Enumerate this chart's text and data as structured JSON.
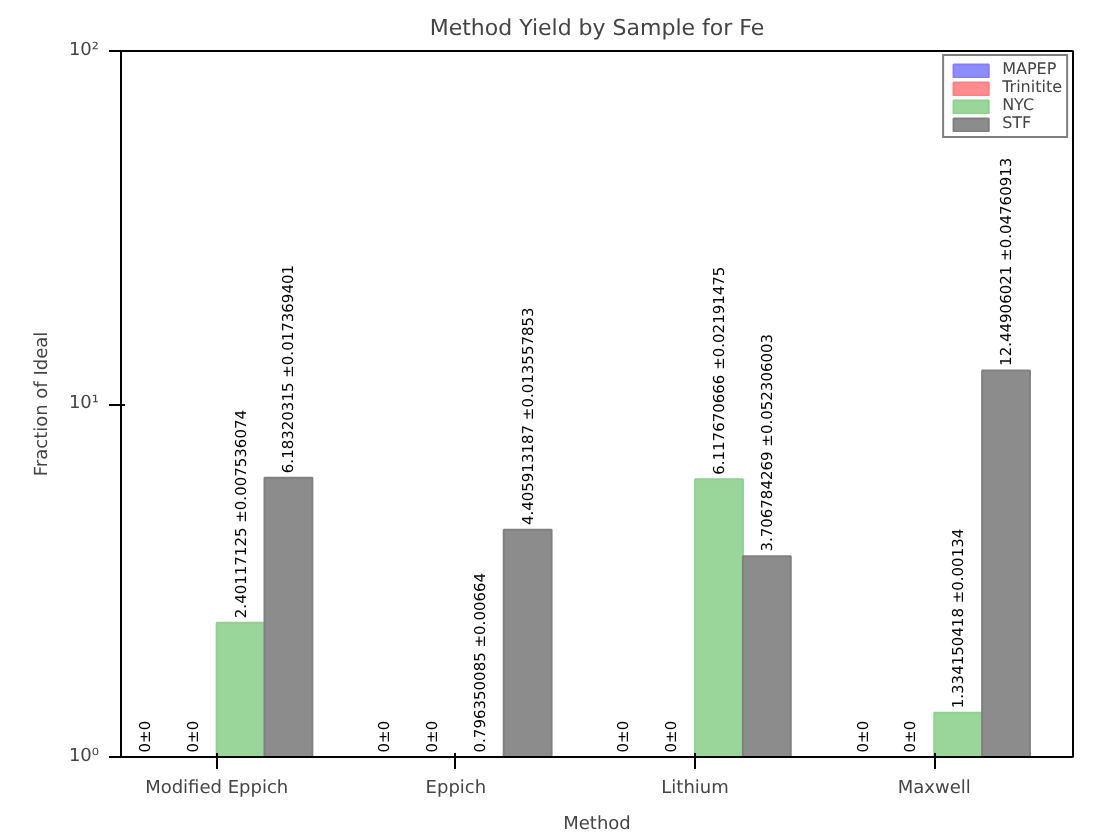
{
  "chart_data": {
    "type": "bar",
    "title": "Method Yield by Sample for Fe",
    "xlabel": "Method",
    "ylabel": "Fraction of Ideal",
    "categories": [
      "Modified Eppich",
      "Eppich",
      "Lithium",
      "Maxwell"
    ],
    "series": [
      {
        "name": "MAPEP",
        "color": "#8080ff",
        "values": [
          null,
          null,
          null,
          null
        ],
        "value_labels": [
          "0±0",
          "0±0",
          "0±0",
          "0±0"
        ]
      },
      {
        "name": "Trinitite",
        "color": "#ff8080",
        "values": [
          null,
          null,
          null,
          null
        ],
        "value_labels": [
          "0±0",
          "0±0",
          "0±0",
          "0±0"
        ]
      },
      {
        "name": "NYC",
        "color": "#8fd18f",
        "values": [
          2.40117125,
          null,
          6.117670666,
          1.334150418
        ],
        "value_labels": [
          "2.40117125 ±0.007536074",
          "0.796350085 ±0.00664",
          "6.117670666 ±0.02191475",
          "1.334150418 ±0.00134"
        ]
      },
      {
        "name": "STF",
        "color": "#808080",
        "values": [
          6.18320315,
          4.405913187,
          3.706784269,
          12.44906021
        ],
        "value_labels": [
          "6.18320315 ±0.017369401",
          "4.405913187 ±0.013557853",
          "3.706784269 ±0.052306003",
          "12.44906021 ±0.04760913"
        ]
      }
    ],
    "log": "y",
    "ylim": [
      1,
      100
    ],
    "yticks": [
      {
        "value": 1,
        "label": "10⁰"
      },
      {
        "value": 10,
        "label": "10¹"
      },
      {
        "value": 100,
        "label": "10²"
      }
    ],
    "legend": "top right",
    "grid": false
  }
}
